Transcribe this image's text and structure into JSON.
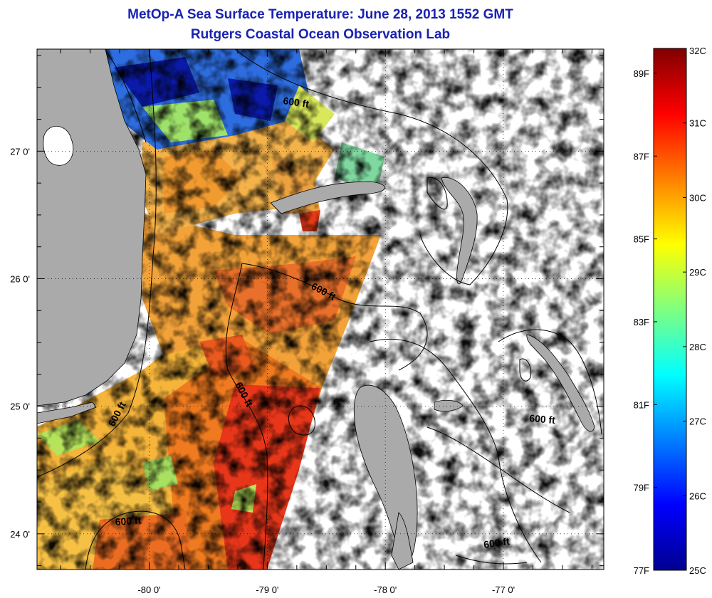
{
  "title": "MetOp-A Sea Surface Temperature:  June 28, 2013 1552 GMT",
  "subtitle": "Rutgers Coastal Ocean Observation Lab",
  "map": {
    "lon_range": [
      -80.95,
      -76.15
    ],
    "lat_range": [
      23.72,
      27.8
    ],
    "x_ticks": [
      {
        "value": -80,
        "label": "-80 0'"
      },
      {
        "value": -79,
        "label": "-79 0'"
      },
      {
        "value": -78,
        "label": "-78 0'"
      },
      {
        "value": -77,
        "label": "-77 0'"
      }
    ],
    "y_ticks": [
      {
        "value": 27,
        "label": "27 0'"
      },
      {
        "value": 26,
        "label": "26 0'"
      },
      {
        "value": 25,
        "label": "25 0'"
      },
      {
        "value": 24,
        "label": "24 0'"
      }
    ],
    "contour_labels": [
      "600 ft",
      "600 ft",
      "600 ft",
      "600 ft",
      "600 ft",
      "600 ft"
    ],
    "land_color": "#aaaaaa"
  },
  "colorbar": {
    "range_c": [
      25,
      32
    ],
    "celsius_labels": [
      "32C",
      "31C",
      "30C",
      "29C",
      "28C",
      "27C",
      "26C",
      "25C"
    ],
    "fahrenheit_labels": [
      "89F",
      "87F",
      "85F",
      "83F",
      "81F",
      "79F",
      "77F"
    ],
    "colormap": "jet"
  }
}
